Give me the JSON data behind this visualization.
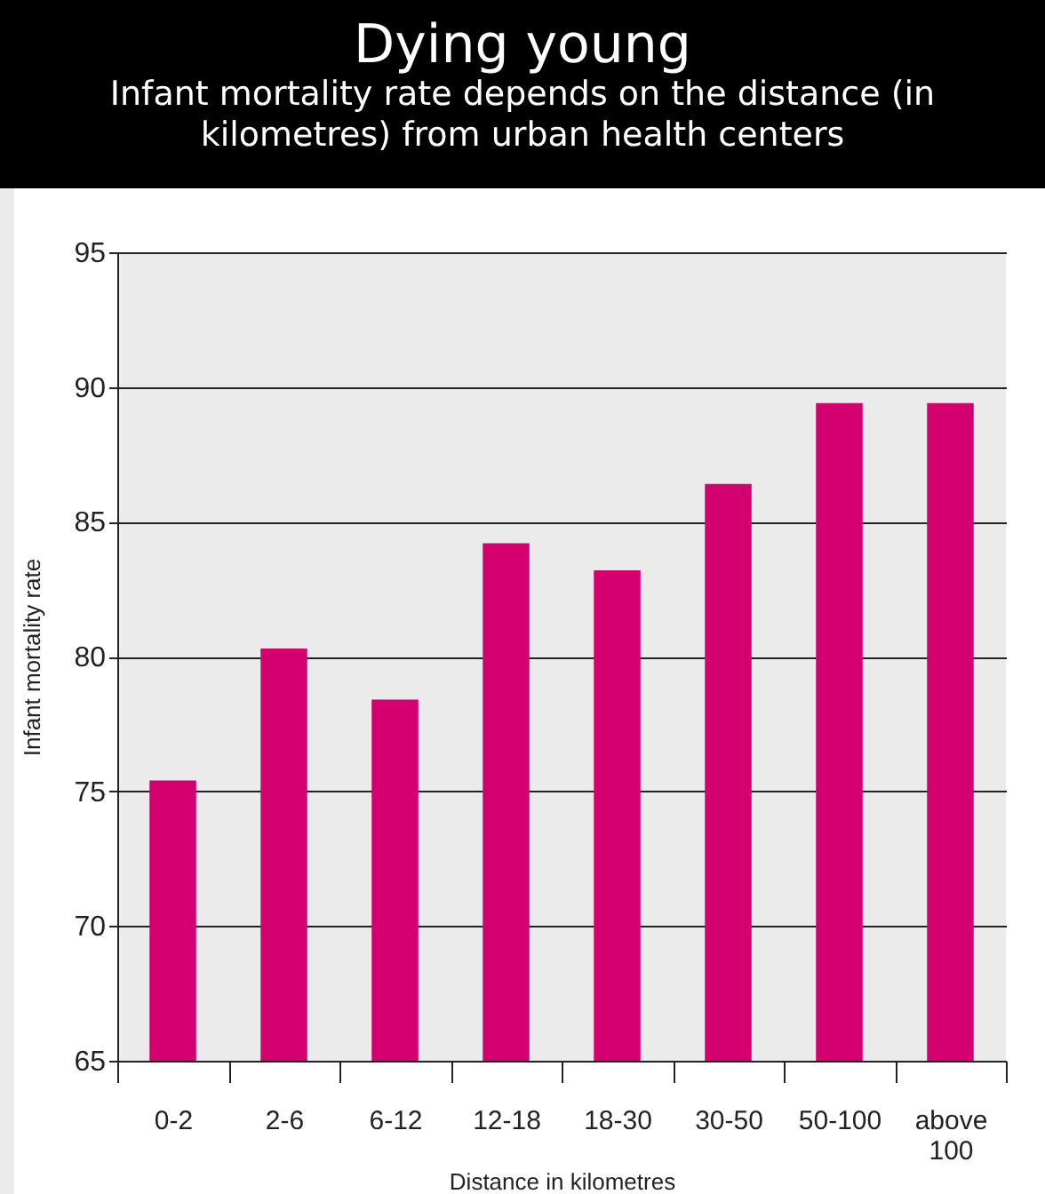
{
  "chart_data": {
    "type": "bar",
    "title": "Dying young",
    "subtitle": "Infant mortality rate depends on the distance (in kilometres) from urban health centers",
    "xlabel": "Distance in kilometres",
    "ylabel": "Infant mortality rate",
    "categories": [
      "0-2",
      "2-6",
      "6-12",
      "12-18",
      "18-30",
      "30-50",
      "50-100",
      "above 100"
    ],
    "values": [
      75.4,
      80.3,
      78.4,
      84.2,
      83.2,
      86.4,
      89.4,
      89.4
    ],
    "color": "#d4006f",
    "ylim": [
      65,
      95
    ],
    "yticks": [
      65,
      70,
      75,
      80,
      85,
      90,
      95
    ],
    "grid": "y"
  }
}
